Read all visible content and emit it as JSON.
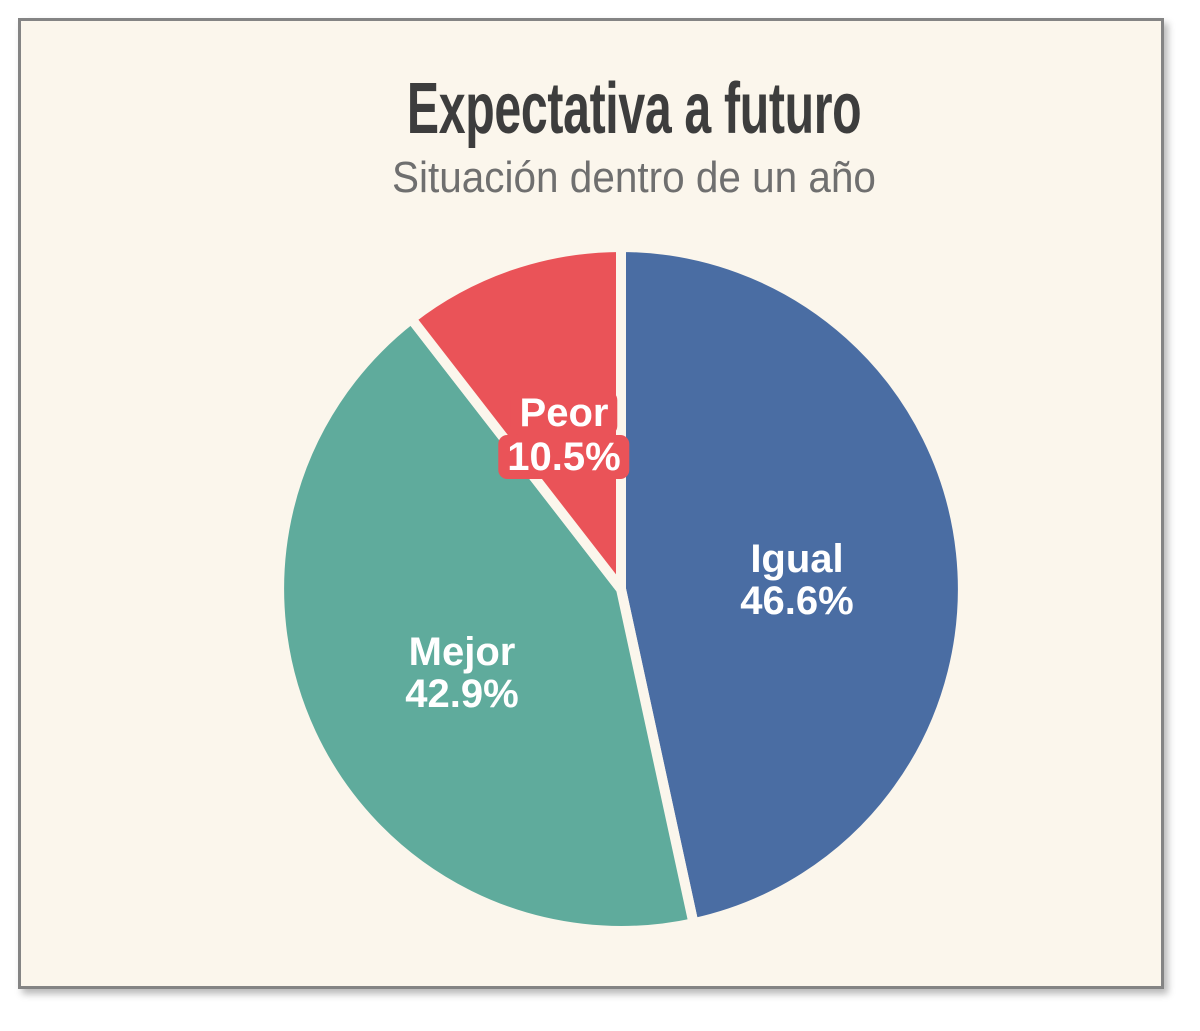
{
  "canvas": {
    "page_background": "#ffffff",
    "card_background": "#fbf6ec",
    "card_border_color": "#848484"
  },
  "header": {
    "title": "Expectativa a futuro",
    "subtitle": "Situación dentro de un año"
  },
  "chart_data": {
    "type": "pie",
    "title": "Expectativa a futuro",
    "subtitle": "Situación dentro de un año",
    "background": "#fbf6ec",
    "start_angle_deg": 0,
    "direction": "clockwise",
    "label_position": "inside",
    "legend": "none",
    "slices": [
      {
        "label": "Igual",
        "value": 46.6,
        "display": "46.6%",
        "color": "#4a6da3"
      },
      {
        "label": "Mejor",
        "value": 42.9,
        "display": "42.9%",
        "color": "#5fab9c"
      },
      {
        "label": "Peor",
        "value": 10.5,
        "display": "10.5%",
        "color": "#ea5358"
      }
    ]
  }
}
